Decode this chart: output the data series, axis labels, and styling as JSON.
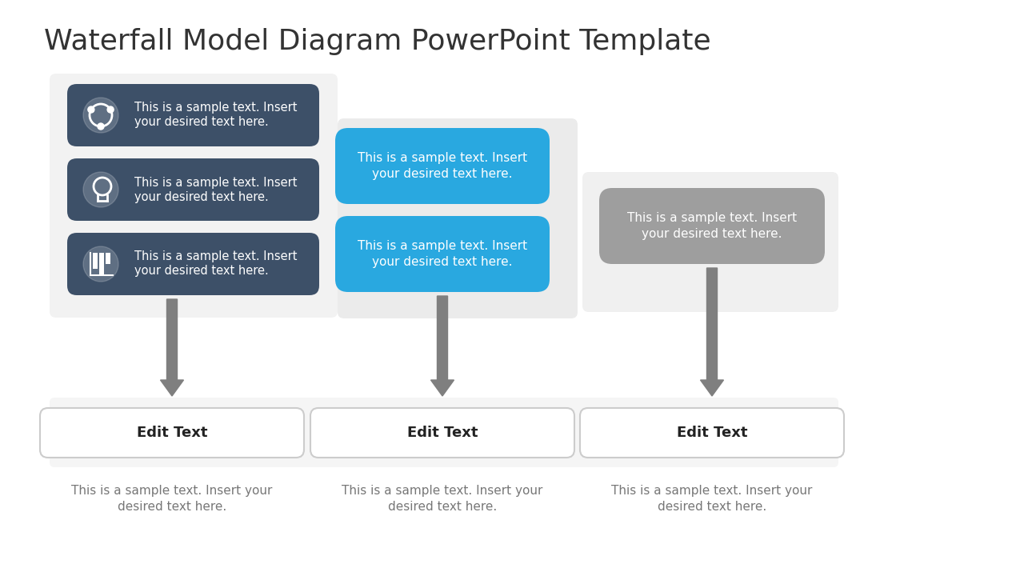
{
  "title": "Waterfall Model Diagram PowerPoint Template",
  "title_fontsize": 26,
  "title_color": "#333333",
  "bg_color": "#ffffff",
  "sample_text_line1": "This is a sample text. Insert",
  "sample_text_line2": "your desired text here.",
  "edit_text": "Edit Text",
  "bottom_text_line1": "This is a sample text. Insert your",
  "bottom_text_line2": "desired text here.",
  "col1_box_color": "#3d5068",
  "col2_box_color": "#29a8e0",
  "col3_box_color": "#9e9e9e",
  "panel1_bg": "#f2f2f2",
  "panel2_bg": "#ebebeb",
  "panel3_bg": "#f0f0f0",
  "edit_box_border_color": "#cccccc",
  "edit_box_fill_color": "#ffffff",
  "arrow_color": "#7f7f7f",
  "text_white": "#ffffff",
  "text_dark": "#444444",
  "text_bold_color": "#222222",
  "bottom_bar_bg": "#f5f5f5"
}
